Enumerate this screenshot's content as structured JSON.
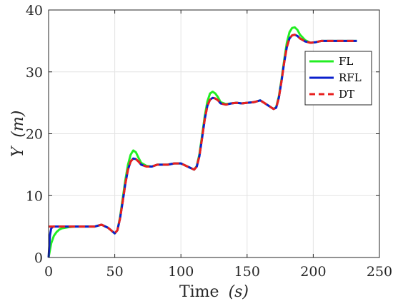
{
  "chart_data": {
    "type": "line",
    "xlabel_main": "Time",
    "xlabel_unit": "(s)",
    "ylabel_main": "Y",
    "ylabel_unit": "(m)",
    "xlim": [
      0,
      250
    ],
    "ylim": [
      0,
      40
    ],
    "xticks": [
      0,
      50,
      100,
      150,
      200,
      250
    ],
    "yticks": [
      0,
      10,
      20,
      30,
      40
    ],
    "grid": true,
    "legend_position": "upper-right",
    "series": [
      {
        "name": "FL",
        "color": "#22ee22",
        "dash": "solid",
        "x": [
          0,
          1,
          2,
          4,
          6,
          8,
          10,
          15,
          20,
          30,
          35,
          40,
          45,
          50,
          52,
          54,
          56,
          58,
          60,
          62,
          64,
          66,
          68,
          70,
          74,
          78,
          82,
          86,
          90,
          95,
          100,
          105,
          110,
          112,
          114,
          116,
          118,
          120,
          122,
          124,
          126,
          128,
          130,
          134,
          138,
          142,
          146,
          150,
          155,
          160,
          165,
          170,
          172,
          174,
          176,
          178,
          180,
          182,
          184,
          186,
          188,
          190,
          194,
          198,
          202,
          206,
          210,
          215,
          220,
          225,
          233
        ],
        "y": [
          0,
          1.2,
          2.3,
          3.5,
          4.1,
          4.5,
          4.7,
          4.9,
          5.0,
          5.0,
          5.0,
          5.3,
          4.8,
          3.9,
          4.4,
          6.5,
          9.5,
          12.5,
          15.0,
          16.6,
          17.3,
          17.0,
          16.1,
          15.3,
          14.8,
          14.7,
          15.0,
          15.0,
          15.0,
          15.2,
          15.2,
          14.7,
          14.2,
          14.8,
          16.7,
          19.7,
          22.8,
          25.2,
          26.5,
          26.8,
          26.5,
          25.9,
          25.1,
          24.8,
          24.9,
          25.0,
          24.9,
          25.0,
          25.1,
          25.4,
          24.7,
          24.0,
          24.3,
          26.0,
          28.8,
          31.9,
          34.7,
          36.4,
          37.1,
          37.2,
          36.8,
          36.0,
          35.1,
          34.7,
          34.8,
          35.0,
          35.0,
          35.0,
          35.0,
          35.0,
          35.0
        ]
      },
      {
        "name": "RFL",
        "color": "#0a1fcc",
        "dash": "solid",
        "x": [
          0,
          1,
          2,
          3,
          4,
          6,
          10,
          15,
          20,
          30,
          35,
          40,
          45,
          50,
          52,
          54,
          56,
          58,
          60,
          62,
          64,
          66,
          68,
          70,
          74,
          78,
          82,
          86,
          90,
          95,
          100,
          105,
          110,
          112,
          114,
          116,
          118,
          120,
          122,
          124,
          126,
          128,
          130,
          134,
          138,
          142,
          146,
          150,
          155,
          160,
          165,
          170,
          172,
          174,
          176,
          178,
          180,
          182,
          184,
          186,
          188,
          190,
          194,
          198,
          202,
          206,
          210,
          215,
          220,
          225,
          233
        ],
        "y": [
          0,
          3.6,
          4.7,
          4.95,
          5.0,
          5.0,
          5.0,
          5.0,
          5.0,
          5.0,
          5.0,
          5.3,
          4.8,
          3.9,
          4.4,
          6.3,
          9.0,
          11.9,
          14.2,
          15.5,
          16.0,
          15.9,
          15.5,
          15.0,
          14.7,
          14.7,
          15.0,
          15.0,
          15.0,
          15.2,
          15.2,
          14.7,
          14.2,
          14.7,
          16.4,
          19.3,
          22.3,
          24.5,
          25.5,
          25.8,
          25.7,
          25.4,
          24.9,
          24.7,
          24.9,
          25.0,
          24.9,
          25.0,
          25.1,
          25.4,
          24.7,
          24.0,
          24.2,
          25.8,
          28.5,
          31.5,
          34.0,
          35.4,
          35.9,
          36.0,
          35.8,
          35.4,
          34.9,
          34.7,
          34.8,
          35.0,
          35.0,
          35.0,
          35.0,
          35.0,
          35.0
        ]
      },
      {
        "name": "DT",
        "color": "#e8201f",
        "dash": "dashed",
        "x": [
          0,
          1,
          2,
          4,
          6,
          10,
          15,
          20,
          30,
          35,
          40,
          45,
          50,
          52,
          54,
          56,
          58,
          60,
          62,
          64,
          66,
          68,
          70,
          74,
          78,
          82,
          86,
          90,
          95,
          100,
          105,
          110,
          112,
          114,
          116,
          118,
          120,
          122,
          124,
          126,
          128,
          130,
          134,
          138,
          142,
          146,
          150,
          155,
          160,
          165,
          170,
          172,
          174,
          176,
          178,
          180,
          182,
          184,
          186,
          188,
          190,
          194,
          198,
          202,
          206,
          210,
          215,
          220,
          225,
          233
        ],
        "y": [
          5.0,
          5.0,
          5.0,
          5.0,
          5.0,
          5.0,
          5.0,
          5.0,
          5.0,
          5.0,
          5.3,
          4.8,
          3.9,
          4.4,
          6.3,
          9.0,
          11.9,
          14.2,
          15.5,
          16.0,
          15.9,
          15.5,
          15.0,
          14.7,
          14.7,
          15.0,
          15.0,
          15.0,
          15.2,
          15.2,
          14.7,
          14.2,
          14.7,
          16.4,
          19.3,
          22.3,
          24.5,
          25.5,
          25.8,
          25.7,
          25.4,
          24.9,
          24.7,
          24.9,
          25.0,
          24.9,
          25.0,
          25.1,
          25.4,
          24.7,
          24.0,
          24.2,
          25.8,
          28.5,
          31.5,
          34.0,
          35.4,
          35.9,
          36.0,
          35.8,
          35.4,
          34.9,
          34.7,
          34.8,
          35.0,
          35.0,
          35.0,
          35.0,
          35.0,
          35.0
        ]
      }
    ]
  }
}
